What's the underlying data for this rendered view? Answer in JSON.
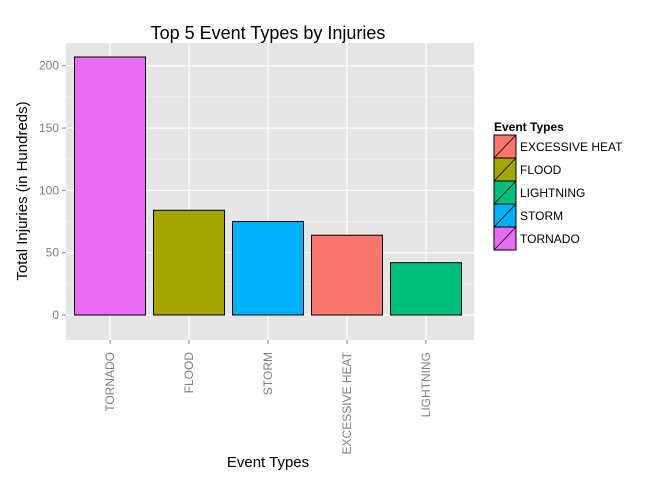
{
  "chart_data": {
    "type": "bar",
    "title": "Top 5 Event Types by Injuries",
    "xlabel": "Event Types",
    "ylabel": "Total Injuries (in Hundreds)",
    "categories": [
      "TORNADO",
      "FLOOD",
      "STORM",
      "EXCESSIVE HEAT",
      "LIGHTNING"
    ],
    "values": [
      207,
      84,
      75,
      64,
      42
    ],
    "ylim": [
      0,
      218
    ],
    "yticks": [
      0,
      50,
      100,
      150,
      200
    ],
    "grid": true,
    "legend": {
      "title": "Event Types",
      "position": "right",
      "entries": [
        "EXCESSIVE HEAT",
        "FLOOD",
        "LIGHTNING",
        "STORM",
        "TORNADO"
      ]
    },
    "colors": {
      "EXCESSIVE HEAT": "#F8766D",
      "FLOOD": "#A3A500",
      "LIGHTNING": "#00BF7D",
      "STORM": "#00B0F6",
      "TORNADO": "#E76BF3"
    },
    "panel_background": "#E5E5E5",
    "grid_color": "#FFFFFF"
  }
}
